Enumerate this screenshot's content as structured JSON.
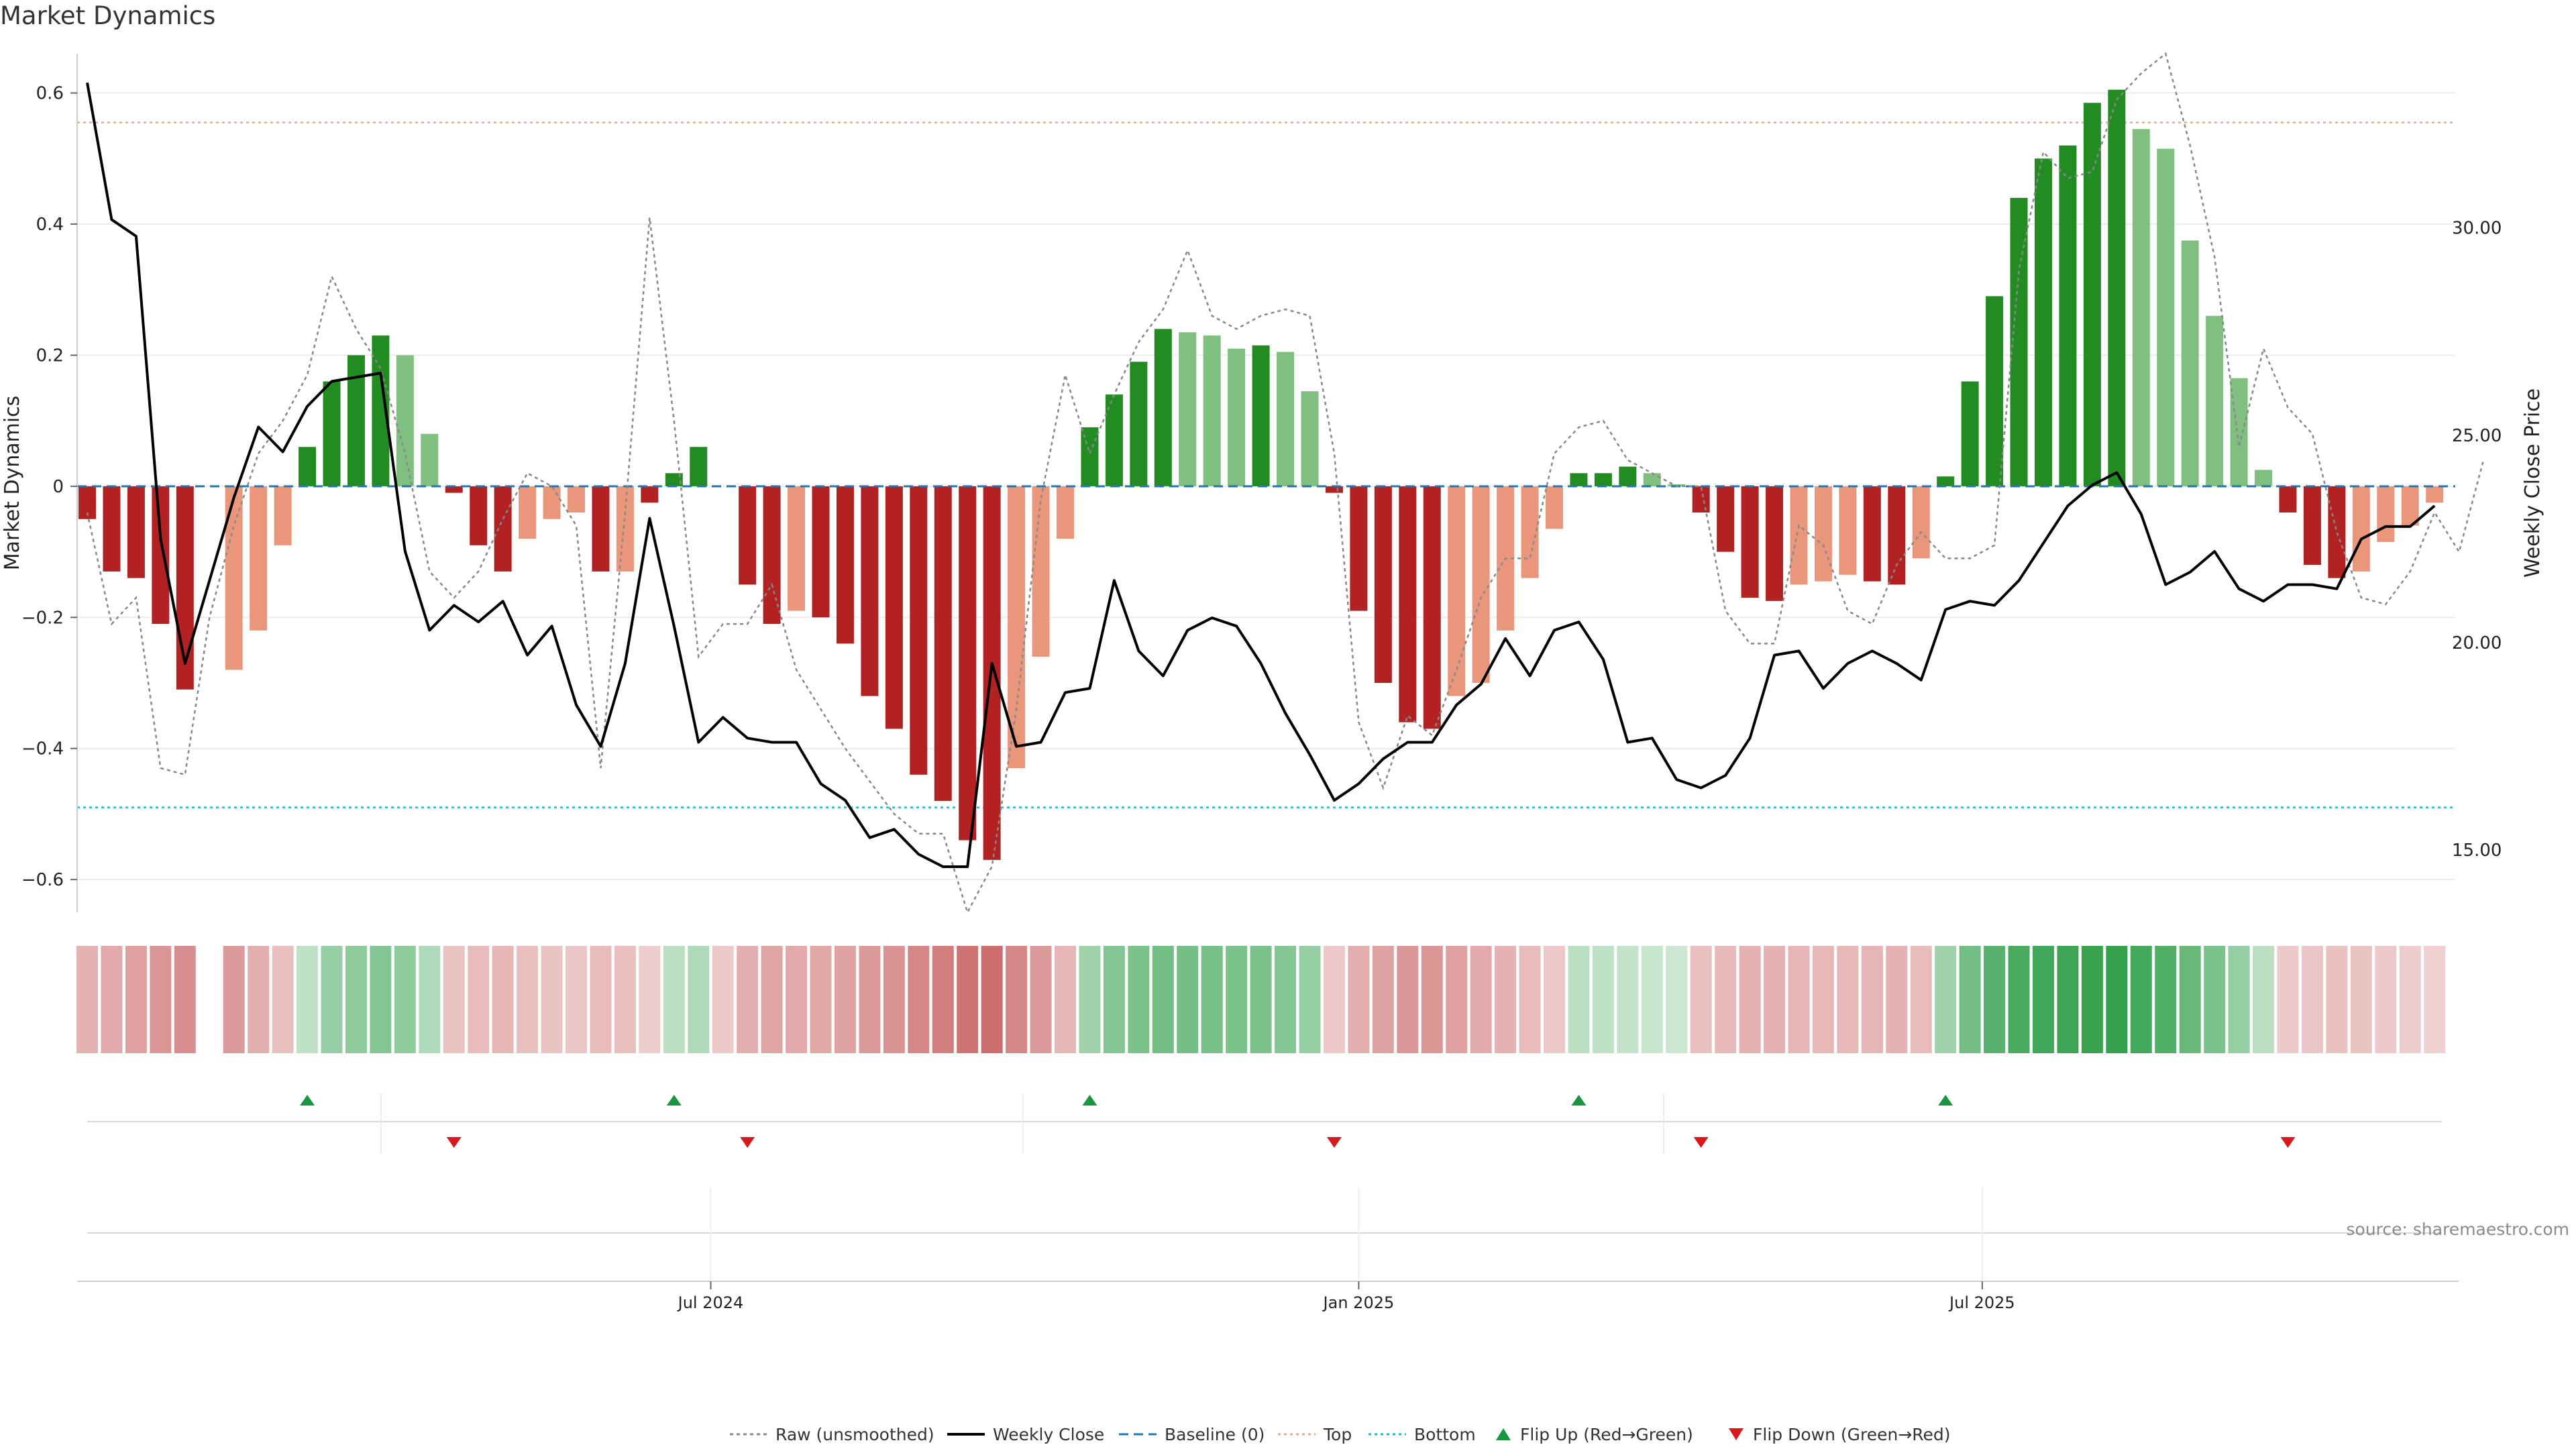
{
  "title": "Market Dynamics",
  "source": "source: sharemaestro.com",
  "colors": {
    "strong_red": "#b22222",
    "weak_red": "#e9967a",
    "strong_green": "#228b22",
    "weak_green": "#7fbf7f",
    "close_line": "#000000",
    "raw_line": "#888888",
    "baseline": "#1f77b4",
    "top": "#f4a582",
    "bottom": "#17becf",
    "flip_up": "#1a9641",
    "flip_down": "#d7191c"
  },
  "legend": [
    {
      "key": "raw",
      "label": "Raw (unsmoothed)"
    },
    {
      "key": "close",
      "label": "Weekly Close"
    },
    {
      "key": "baseline",
      "label": "Baseline (0)"
    },
    {
      "key": "top",
      "label": "Top"
    },
    {
      "key": "bottom",
      "label": "Bottom"
    },
    {
      "key": "flip_up",
      "label": "Flip Up (Red→Green)"
    },
    {
      "key": "flip_down",
      "label": "Flip Down (Green→Red)"
    }
  ],
  "chart_data": {
    "type": "bar",
    "title": "Market Dynamics",
    "ylabel": "Market Dynamics",
    "y2label": "Weekly Close Price",
    "ylim": [
      -0.65,
      0.66
    ],
    "y2lim": [
      13.5,
      34.2
    ],
    "yticks": [
      -0.6,
      -0.4,
      -0.2,
      0,
      0.2,
      0.4,
      0.6
    ],
    "yticklabels": [
      "−0.6",
      "−0.4",
      "−0.2",
      "0",
      "0.2",
      "0.4",
      "0.6"
    ],
    "y2ticks": [
      15,
      20,
      25,
      30
    ],
    "y2ticklabels": [
      "15.00",
      "20.00",
      "25.00",
      "30.00"
    ],
    "xticks": [
      {
        "week": 25.5,
        "label": "Jul 2024"
      },
      {
        "week": 52,
        "label": "Jan 2025"
      },
      {
        "week": 77.5,
        "label": "Jul 2025"
      }
    ],
    "top_line": 0.555,
    "bottom_line": -0.49,
    "dynamics": [
      -0.05,
      -0.13,
      -0.14,
      -0.21,
      -0.31,
      0,
      -0.28,
      -0.22,
      -0.09,
      0.06,
      0.16,
      0.2,
      0.23,
      0.2,
      0.08,
      -0.01,
      -0.09,
      -0.13,
      -0.08,
      -0.05,
      -0.04,
      -0.13,
      -0.13,
      -0.025,
      0.02,
      0.06,
      0,
      -0.15,
      -0.21,
      -0.19,
      -0.2,
      -0.24,
      -0.32,
      -0.37,
      -0.44,
      -0.48,
      -0.54,
      -0.57,
      -0.43,
      -0.26,
      -0.08,
      0.09,
      0.14,
      0.19,
      0.24,
      0.235,
      0.23,
      0.21,
      0.215,
      0.205,
      0.145,
      -0.01,
      -0.19,
      -0.3,
      -0.36,
      -0.37,
      -0.32,
      -0.3,
      -0.22,
      -0.14,
      -0.065,
      0.02,
      0.02,
      0.03,
      0.02,
      0.003,
      -0.04,
      -0.1,
      -0.17,
      -0.175,
      -0.15,
      -0.145,
      -0.135,
      -0.145,
      -0.15,
      -0.11,
      0.015,
      0.16,
      0.29,
      0.44,
      0.5,
      0.52,
      0.585,
      0.605,
      0.545,
      0.515,
      0.375,
      0.26,
      0.165,
      0.025,
      -0.04,
      -0.12,
      -0.14,
      -0.13,
      -0.085,
      -0.06,
      -0.025
    ],
    "bar_colors": [
      "strong_red",
      "strong_red",
      "strong_red",
      "strong_red",
      "strong_red",
      "none",
      "weak_red",
      "weak_red",
      "weak_red",
      "strong_green",
      "strong_green",
      "strong_green",
      "strong_green",
      "weak_green",
      "weak_green",
      "strong_red",
      "strong_red",
      "strong_red",
      "weak_red",
      "weak_red",
      "weak_red",
      "strong_red",
      "weak_red",
      "strong_red",
      "strong_green",
      "strong_green",
      "strong_red",
      "strong_red",
      "strong_red",
      "weak_red",
      "strong_red",
      "strong_red",
      "strong_red",
      "strong_red",
      "strong_red",
      "strong_red",
      "strong_red",
      "strong_red",
      "weak_red",
      "weak_red",
      "weak_red",
      "strong_green",
      "strong_green",
      "strong_green",
      "strong_green",
      "weak_green",
      "weak_green",
      "weak_green",
      "strong_green",
      "weak_green",
      "weak_green",
      "strong_red",
      "strong_red",
      "strong_red",
      "strong_red",
      "strong_red",
      "weak_red",
      "weak_red",
      "weak_red",
      "weak_red",
      "weak_red",
      "strong_green",
      "strong_green",
      "strong_green",
      "weak_green",
      "weak_green",
      "strong_red",
      "strong_red",
      "strong_red",
      "strong_red",
      "weak_red",
      "weak_red",
      "weak_red",
      "strong_red",
      "strong_red",
      "weak_red",
      "strong_green",
      "strong_green",
      "strong_green",
      "strong_green",
      "strong_green",
      "strong_green",
      "strong_green",
      "strong_green",
      "weak_green",
      "weak_green",
      "weak_green",
      "weak_green",
      "weak_green",
      "weak_green",
      "strong_red",
      "strong_red",
      "strong_red",
      "weak_red",
      "weak_red",
      "weak_red",
      "weak_red"
    ],
    "raw": [
      -0.04,
      -0.21,
      -0.17,
      -0.43,
      -0.44,
      -0.2,
      -0.06,
      0.05,
      0.1,
      0.17,
      0.32,
      0.24,
      0.18,
      0.05,
      -0.13,
      -0.17,
      -0.13,
      -0.05,
      0.02,
      0.0,
      -0.06,
      -0.43,
      -0.04,
      0.41,
      0.1,
      -0.26,
      -0.21,
      -0.21,
      -0.15,
      -0.28,
      -0.34,
      -0.4,
      -0.45,
      -0.5,
      -0.53,
      -0.53,
      -0.65,
      -0.58,
      -0.34,
      -0.02,
      0.17,
      0.05,
      0.14,
      0.22,
      0.27,
      0.36,
      0.26,
      0.24,
      0.26,
      0.27,
      0.26,
      0.05,
      -0.36,
      -0.46,
      -0.35,
      -0.38,
      -0.28,
      -0.17,
      -0.11,
      -0.11,
      0.05,
      0.09,
      0.1,
      0.04,
      0.02,
      0.0,
      0.0,
      -0.19,
      -0.24,
      -0.24,
      -0.06,
      -0.09,
      -0.19,
      -0.21,
      -0.12,
      -0.07,
      -0.11,
      -0.11,
      -0.09,
      0.33,
      0.51,
      0.47,
      0.48,
      0.59,
      0.63,
      0.66,
      0.52,
      0.35,
      0.06,
      0.21,
      0.12,
      0.08,
      -0.07,
      -0.17,
      -0.18,
      -0.13,
      -0.04,
      -0.1,
      0.04
    ],
    "close": [
      33.5,
      30.2,
      29.8,
      22.5,
      19.5,
      21.5,
      23.5,
      25.2,
      24.6,
      25.7,
      26.3,
      26.4,
      26.5,
      22.2,
      20.3,
      20.9,
      20.5,
      21.0,
      19.7,
      20.4,
      18.5,
      17.5,
      19.5,
      23.0,
      20.4,
      17.6,
      18.2,
      17.7,
      17.6,
      17.6,
      16.6,
      16.2,
      15.3,
      15.5,
      14.9,
      14.6,
      14.6,
      19.5,
      17.5,
      17.6,
      18.8,
      18.9,
      21.5,
      19.8,
      19.2,
      20.3,
      20.6,
      20.4,
      19.5,
      18.3,
      17.3,
      16.2,
      16.6,
      17.2,
      17.6,
      17.6,
      18.5,
      19.0,
      20.1,
      19.2,
      20.3,
      20.5,
      19.6,
      17.6,
      17.7,
      16.7,
      16.5,
      16.8,
      17.7,
      19.7,
      19.8,
      18.9,
      19.5,
      19.8,
      19.5,
      19.1,
      20.8,
      21.0,
      20.9,
      21.5,
      22.4,
      23.3,
      23.8,
      24.1,
      23.1,
      21.4,
      21.7,
      22.2,
      21.3,
      21.0,
      21.4,
      21.4,
      21.3,
      22.5,
      22.8,
      22.8,
      23.3
    ],
    "heat_intensity": [
      0.38,
      0.45,
      0.52,
      0.6,
      0.65,
      0,
      0.55,
      0.42,
      0.28,
      0.22,
      0.45,
      0.5,
      0.55,
      0.5,
      0.3,
      0.25,
      0.3,
      0.35,
      0.28,
      0.25,
      0.24,
      0.3,
      0.28,
      0.18,
      0.25,
      0.3,
      0.2,
      0.42,
      0.48,
      0.45,
      0.46,
      0.5,
      0.55,
      0.62,
      0.72,
      0.78,
      0.85,
      0.9,
      0.72,
      0.55,
      0.35,
      0.4,
      0.55,
      0.6,
      0.65,
      0.63,
      0.62,
      0.6,
      0.6,
      0.55,
      0.45,
      0.22,
      0.42,
      0.5,
      0.58,
      0.6,
      0.52,
      0.45,
      0.38,
      0.3,
      0.22,
      0.25,
      0.22,
      0.2,
      0.18,
      0.15,
      0.28,
      0.32,
      0.38,
      0.38,
      0.35,
      0.34,
      0.33,
      0.36,
      0.38,
      0.3,
      0.4,
      0.65,
      0.8,
      0.88,
      0.92,
      0.95,
      0.98,
      1.0,
      0.9,
      0.85,
      0.72,
      0.6,
      0.45,
      0.25,
      0.2,
      0.24,
      0.26,
      0.25,
      0.22,
      0.18,
      0.15
    ],
    "flips_up": [
      9,
      24,
      41,
      61,
      76
    ],
    "flips_down": [
      15,
      27,
      51,
      66,
      90
    ]
  }
}
